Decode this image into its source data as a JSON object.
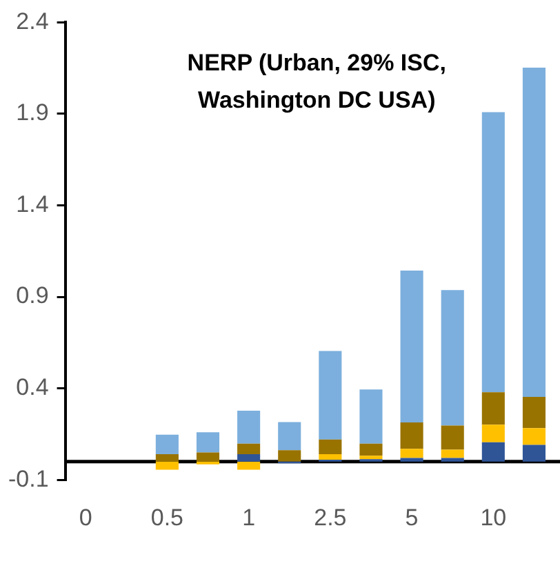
{
  "chart_data": {
    "type": "bar",
    "stacked": true,
    "title": "NERP (Urban, 29% ISC, Washington DC USA)",
    "categories": [
      "0",
      null,
      "0.5",
      null,
      "1",
      null,
      "2.5",
      null,
      "5",
      null,
      "10",
      null
    ],
    "series": [
      {
        "color": "#2f5597",
        "values": [
          null,
          null,
          0,
          0,
          0.04,
          -0.01,
          0.01,
          0.013,
          0.02,
          0.02,
          0.105,
          0.091
        ]
      },
      {
        "color": "#ffc000",
        "values": [
          null,
          null,
          -0.045,
          -0.015,
          -0.045,
          0,
          0.03,
          0.019,
          0.05,
          0.045,
          0.097,
          0.092
        ]
      },
      {
        "color": "#997300",
        "values": [
          null,
          null,
          0.04,
          0.05,
          0.058,
          0.062,
          0.08,
          0.066,
          0.144,
          0.132,
          0.177,
          0.17
        ]
      },
      {
        "color": "#7cafdd",
        "values": [
          null,
          null,
          0.107,
          0.11,
          0.18,
          0.154,
          0.484,
          0.296,
          0.83,
          0.74,
          1.53,
          1.8
        ]
      }
    ],
    "ylim": [
      -0.1,
      2.4
    ],
    "yticks": [
      -0.1,
      0.4,
      0.9,
      1.4,
      1.9,
      2.4
    ],
    "grid": false,
    "legend": false
  }
}
